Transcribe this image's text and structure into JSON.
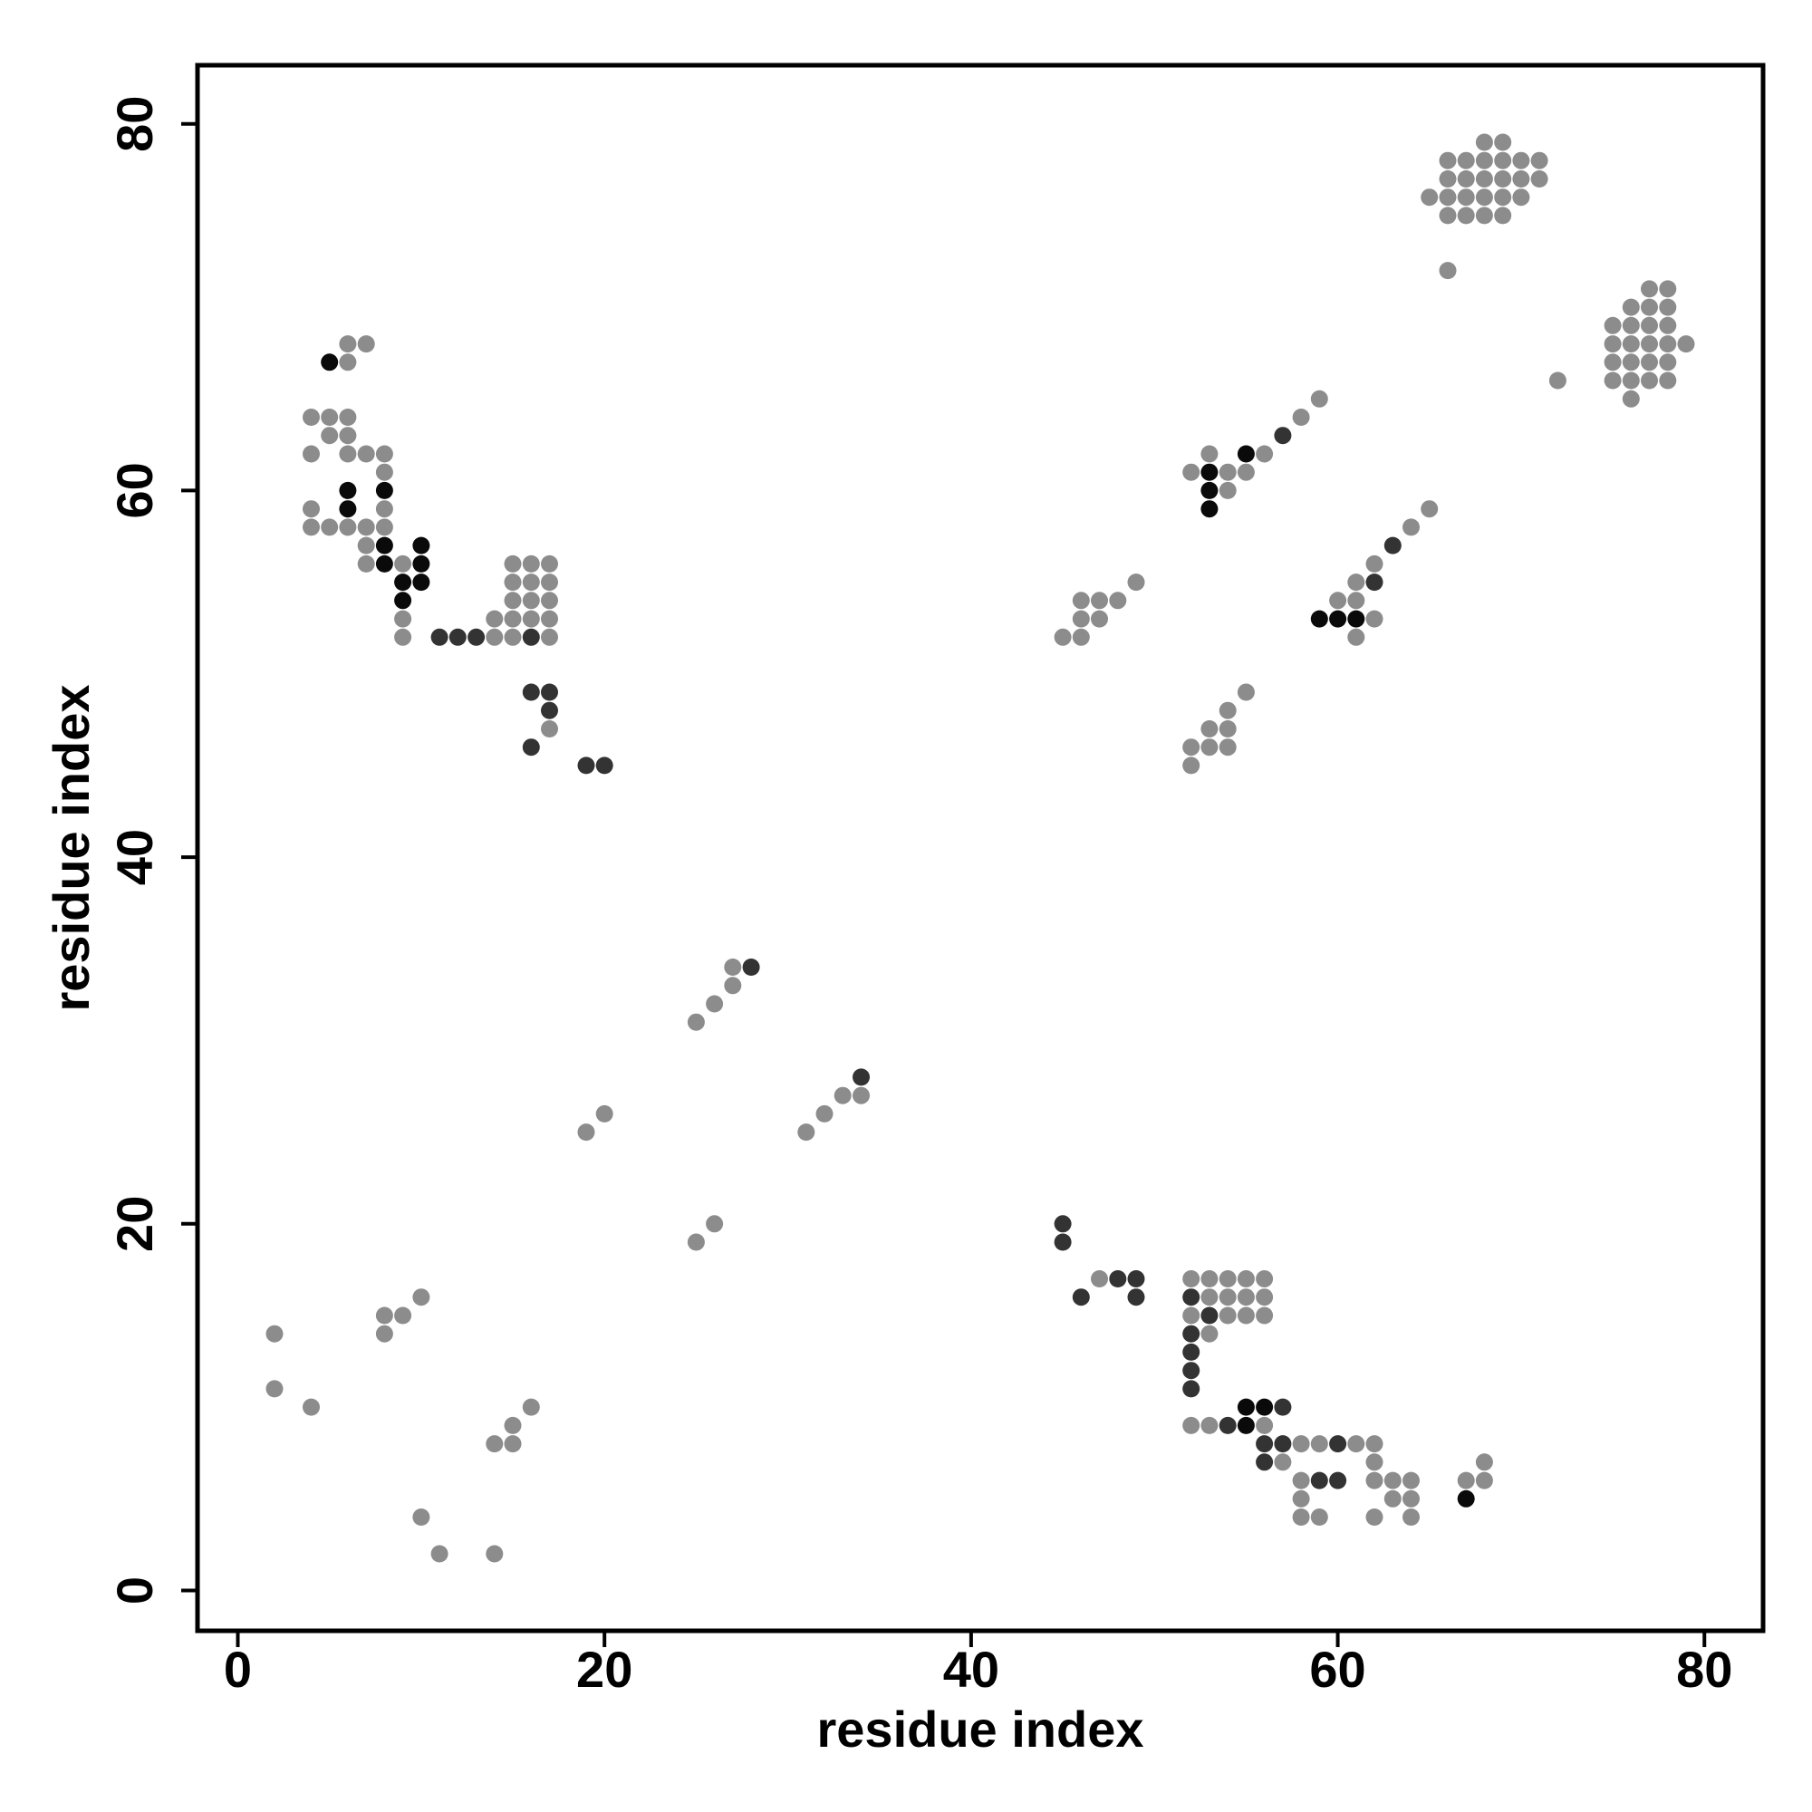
{
  "chart_data": {
    "type": "scatter",
    "title": "",
    "xlabel": "residue index",
    "ylabel": "residue index",
    "xlim": [
      -2.2,
      83.2
    ],
    "ylim": [
      -2.2,
      83.2
    ],
    "xticks": [
      0,
      20,
      40,
      60,
      80
    ],
    "yticks": [
      0,
      20,
      40,
      60,
      80
    ],
    "grid": false,
    "colors": {
      "light": "#8c8c8c",
      "dark": "#333333",
      "black": "#0a0a0a"
    },
    "series": [
      {
        "shade": "light",
        "points": [
          [
            2,
            14
          ],
          [
            2,
            11
          ],
          [
            4,
            10
          ],
          [
            8,
            15
          ],
          [
            8,
            14
          ],
          [
            9,
            15
          ],
          [
            10,
            16
          ],
          [
            10,
            4
          ],
          [
            11,
            2
          ],
          [
            14,
            2
          ],
          [
            14,
            8
          ],
          [
            15,
            8
          ],
          [
            15,
            9
          ],
          [
            16,
            10
          ],
          [
            19,
            25
          ],
          [
            20,
            26
          ],
          [
            25,
            19
          ],
          [
            26,
            20
          ],
          [
            25,
            31
          ],
          [
            26,
            32
          ],
          [
            27,
            33
          ],
          [
            27,
            34
          ],
          [
            31,
            25
          ],
          [
            32,
            26
          ],
          [
            33,
            27
          ],
          [
            34,
            27
          ],
          [
            6,
            68
          ],
          [
            7,
            68
          ],
          [
            6,
            67
          ],
          [
            4,
            64
          ],
          [
            5,
            64
          ],
          [
            6,
            64
          ],
          [
            5,
            63
          ],
          [
            6,
            63
          ],
          [
            4,
            62
          ],
          [
            6,
            62
          ],
          [
            7,
            62
          ],
          [
            8,
            62
          ],
          [
            8,
            61
          ],
          [
            4,
            59
          ],
          [
            8,
            59
          ],
          [
            4,
            58
          ],
          [
            5,
            58
          ],
          [
            6,
            58
          ],
          [
            7,
            58
          ],
          [
            8,
            58
          ],
          [
            7,
            57
          ],
          [
            7,
            56
          ],
          [
            9,
            56
          ],
          [
            9,
            53
          ],
          [
            9,
            52
          ],
          [
            15,
            56
          ],
          [
            16,
            56
          ],
          [
            17,
            56
          ],
          [
            15,
            55
          ],
          [
            16,
            55
          ],
          [
            17,
            55
          ],
          [
            15,
            54
          ],
          [
            16,
            54
          ],
          [
            17,
            54
          ],
          [
            14,
            53
          ],
          [
            15,
            53
          ],
          [
            16,
            53
          ],
          [
            17,
            53
          ],
          [
            14,
            52
          ],
          [
            15,
            52
          ],
          [
            17,
            52
          ],
          [
            17,
            47
          ],
          [
            45,
            52
          ],
          [
            46,
            52
          ],
          [
            46,
            53
          ],
          [
            47,
            53
          ],
          [
            46,
            54
          ],
          [
            47,
            54
          ],
          [
            48,
            54
          ],
          [
            49,
            55
          ],
          [
            52,
            46
          ],
          [
            52,
            45
          ],
          [
            53,
            46
          ],
          [
            54,
            46
          ],
          [
            53,
            47
          ],
          [
            54,
            47
          ],
          [
            54,
            48
          ],
          [
            55,
            49
          ],
          [
            52,
            61
          ],
          [
            53,
            62
          ],
          [
            54,
            61
          ],
          [
            55,
            61
          ],
          [
            54,
            60
          ],
          [
            56,
            62
          ],
          [
            58,
            64
          ],
          [
            59,
            65
          ],
          [
            60,
            54
          ],
          [
            61,
            54
          ],
          [
            61,
            55
          ],
          [
            62,
            56
          ],
          [
            61,
            52
          ],
          [
            62,
            53
          ],
          [
            64,
            58
          ],
          [
            65,
            59
          ],
          [
            66,
            72
          ],
          [
            72,
            66
          ],
          [
            65,
            76
          ],
          [
            66,
            78
          ],
          [
            67,
            78
          ],
          [
            68,
            78
          ],
          [
            69,
            78
          ],
          [
            70,
            78
          ],
          [
            71,
            78
          ],
          [
            68,
            79
          ],
          [
            69,
            79
          ],
          [
            66,
            77
          ],
          [
            67,
            77
          ],
          [
            68,
            77
          ],
          [
            69,
            77
          ],
          [
            70,
            77
          ],
          [
            71,
            77
          ],
          [
            66,
            76
          ],
          [
            67,
            76
          ],
          [
            68,
            76
          ],
          [
            69,
            76
          ],
          [
            70,
            76
          ],
          [
            66,
            75
          ],
          [
            67,
            75
          ],
          [
            68,
            75
          ],
          [
            69,
            75
          ],
          [
            75,
            69
          ],
          [
            76,
            69
          ],
          [
            77,
            69
          ],
          [
            78,
            69
          ],
          [
            75,
            68
          ],
          [
            76,
            68
          ],
          [
            77,
            68
          ],
          [
            78,
            68
          ],
          [
            79,
            68
          ],
          [
            75,
            67
          ],
          [
            76,
            67
          ],
          [
            77,
            67
          ],
          [
            78,
            67
          ],
          [
            75,
            66
          ],
          [
            76,
            66
          ],
          [
            77,
            66
          ],
          [
            78,
            66
          ],
          [
            76,
            70
          ],
          [
            77,
            70
          ],
          [
            78,
            70
          ],
          [
            77,
            71
          ],
          [
            78,
            71
          ],
          [
            76,
            65
          ],
          [
            47,
            17
          ],
          [
            52,
            17
          ],
          [
            53,
            17
          ],
          [
            54,
            17
          ],
          [
            55,
            17
          ],
          [
            56,
            17
          ],
          [
            53,
            16
          ],
          [
            54,
            16
          ],
          [
            55,
            16
          ],
          [
            56,
            16
          ],
          [
            52,
            15
          ],
          [
            54,
            15
          ],
          [
            55,
            15
          ],
          [
            56,
            15
          ],
          [
            53,
            14
          ],
          [
            52,
            9
          ],
          [
            53,
            9
          ],
          [
            56,
            9
          ],
          [
            57,
            7
          ],
          [
            58,
            8
          ],
          [
            59,
            8
          ],
          [
            61,
            8
          ],
          [
            62,
            8
          ],
          [
            62,
            7
          ],
          [
            58,
            6
          ],
          [
            62,
            6
          ],
          [
            63,
            6
          ],
          [
            64,
            6
          ],
          [
            58,
            5
          ],
          [
            63,
            5
          ],
          [
            64,
            5
          ],
          [
            58,
            4
          ],
          [
            59,
            4
          ],
          [
            62,
            4
          ],
          [
            64,
            4
          ],
          [
            67,
            6
          ],
          [
            68,
            6
          ],
          [
            68,
            7
          ]
        ]
      },
      {
        "shade": "dark",
        "points": [
          [
            11,
            52
          ],
          [
            12,
            52
          ],
          [
            13,
            52
          ],
          [
            16,
            52
          ],
          [
            16,
            49
          ],
          [
            17,
            49
          ],
          [
            17,
            48
          ],
          [
            16,
            46
          ],
          [
            19,
            45
          ],
          [
            20,
            45
          ],
          [
            28,
            34
          ],
          [
            34,
            28
          ],
          [
            62,
            55
          ],
          [
            63,
            57
          ],
          [
            57,
            63
          ],
          [
            45,
            20
          ],
          [
            45,
            19
          ],
          [
            46,
            16
          ],
          [
            48,
            17
          ],
          [
            49,
            17
          ],
          [
            49,
            16
          ],
          [
            52,
            16
          ],
          [
            53,
            15
          ],
          [
            52,
            14
          ],
          [
            52,
            13
          ],
          [
            52,
            12
          ],
          [
            52,
            11
          ],
          [
            54,
            9
          ],
          [
            57,
            10
          ],
          [
            56,
            8
          ],
          [
            57,
            8
          ],
          [
            56,
            7
          ],
          [
            59,
            6
          ],
          [
            60,
            6
          ],
          [
            60,
            8
          ]
        ]
      },
      {
        "shade": "black",
        "points": [
          [
            5,
            67
          ],
          [
            6,
            60
          ],
          [
            6,
            59
          ],
          [
            8,
            60
          ],
          [
            8,
            57
          ],
          [
            8,
            56
          ],
          [
            9,
            55
          ],
          [
            9,
            54
          ],
          [
            10,
            57
          ],
          [
            10,
            56
          ],
          [
            10,
            55
          ],
          [
            53,
            61
          ],
          [
            53,
            60
          ],
          [
            53,
            59
          ],
          [
            55,
            62
          ],
          [
            59,
            53
          ],
          [
            60,
            53
          ],
          [
            61,
            53
          ],
          [
            55,
            10
          ],
          [
            56,
            10
          ],
          [
            55,
            9
          ],
          [
            67,
            5
          ]
        ]
      }
    ]
  }
}
